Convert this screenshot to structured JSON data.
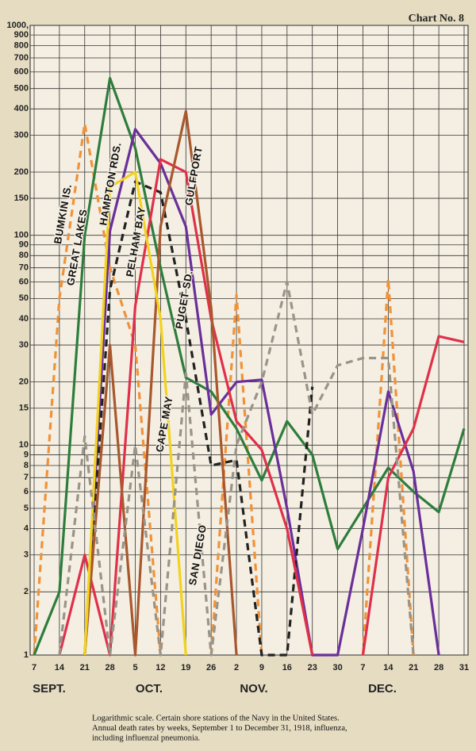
{
  "chart_data": {
    "type": "line",
    "title": "Chart No. 8",
    "caption": [
      "Logarithmic scale. Certain shore stations of the Navy in the United States.",
      "Annual death rates by weeks, September 1 to December 31, 1918, influenza,",
      "including influenzal pneumonia."
    ],
    "categories": [
      "7",
      "14",
      "21",
      "28",
      "5",
      "12",
      "19",
      "26",
      "2",
      "9",
      "16",
      "23",
      "30",
      "7",
      "14",
      "21",
      "28",
      "31"
    ],
    "x_group_labels": [
      "SEPT.",
      "OCT.",
      "NOV.",
      "DEC."
    ],
    "log_scale": true,
    "grid": true,
    "ylim": [
      1,
      1000
    ],
    "yticks": [
      1,
      2,
      3,
      4,
      5,
      6,
      7,
      8,
      9,
      10,
      15,
      20,
      30,
      40,
      50,
      60,
      70,
      80,
      90,
      100,
      150,
      200,
      300,
      400,
      500,
      600,
      700,
      800,
      900,
      {
        "value": 1000,
        "label": "1000,"
      }
    ],
    "series": [
      {
        "name": "BUMKIN IS.",
        "color": "#f0923a",
        "style": "dashed",
        "values": [
          1,
          50,
          340,
          70,
          30,
          1,
          null,
          1,
          52,
          1,
          null,
          null,
          null,
          1,
          62,
          1,
          null,
          null
        ]
      },
      {
        "name": "GREAT LAKES",
        "color": "#2e7d3c",
        "style": "solid",
        "values": [
          1,
          2,
          100,
          560,
          260,
          70,
          21,
          18,
          12,
          6.8,
          13,
          9,
          3.2,
          5,
          7.8,
          6,
          4.8,
          12
        ]
      },
      {
        "name": "HAMPTON RDS.",
        "color": "#6a2f9a",
        "style": "solid",
        "values": [
          null,
          null,
          1,
          105,
          320,
          220,
          110,
          14,
          20,
          20.5,
          5,
          1,
          1,
          4,
          18,
          7.5,
          1,
          null
        ]
      },
      {
        "name": "PELHAM BAY",
        "color": "#222222",
        "style": "dashed",
        "values": [
          null,
          null,
          1,
          55,
          180,
          160,
          40,
          8,
          8.5,
          1,
          1,
          19,
          null,
          null,
          null,
          null,
          null,
          null
        ]
      },
      {
        "name": "PUGET SD.",
        "color": "#e0304a",
        "style": "solid",
        "values": [
          null,
          1,
          3,
          1,
          46,
          230,
          200,
          40,
          13,
          9.5,
          4,
          1,
          null,
          1,
          7,
          12,
          33,
          31
        ]
      },
      {
        "name": "GULFPORT",
        "color": "#a8582e",
        "style": "solid",
        "values": [
          null,
          null,
          1,
          30,
          1,
          110,
          390,
          45,
          1,
          null,
          null,
          null,
          null,
          null,
          null,
          null,
          null,
          null
        ]
      },
      {
        "name": "CAPE MAY",
        "color": "#f2d21e",
        "style": "solid",
        "values": [
          null,
          null,
          1,
          170,
          200,
          40,
          1,
          null,
          null,
          null,
          null,
          null,
          null,
          null,
          null,
          null,
          null,
          null
        ]
      },
      {
        "name": "SAN DIEGO",
        "color": "#9a9488",
        "style": "dashed",
        "values": [
          null,
          1,
          11,
          1,
          10,
          1,
          22,
          1,
          10,
          20,
          60,
          14,
          24,
          26,
          26,
          1,
          null,
          null
        ]
      }
    ]
  }
}
